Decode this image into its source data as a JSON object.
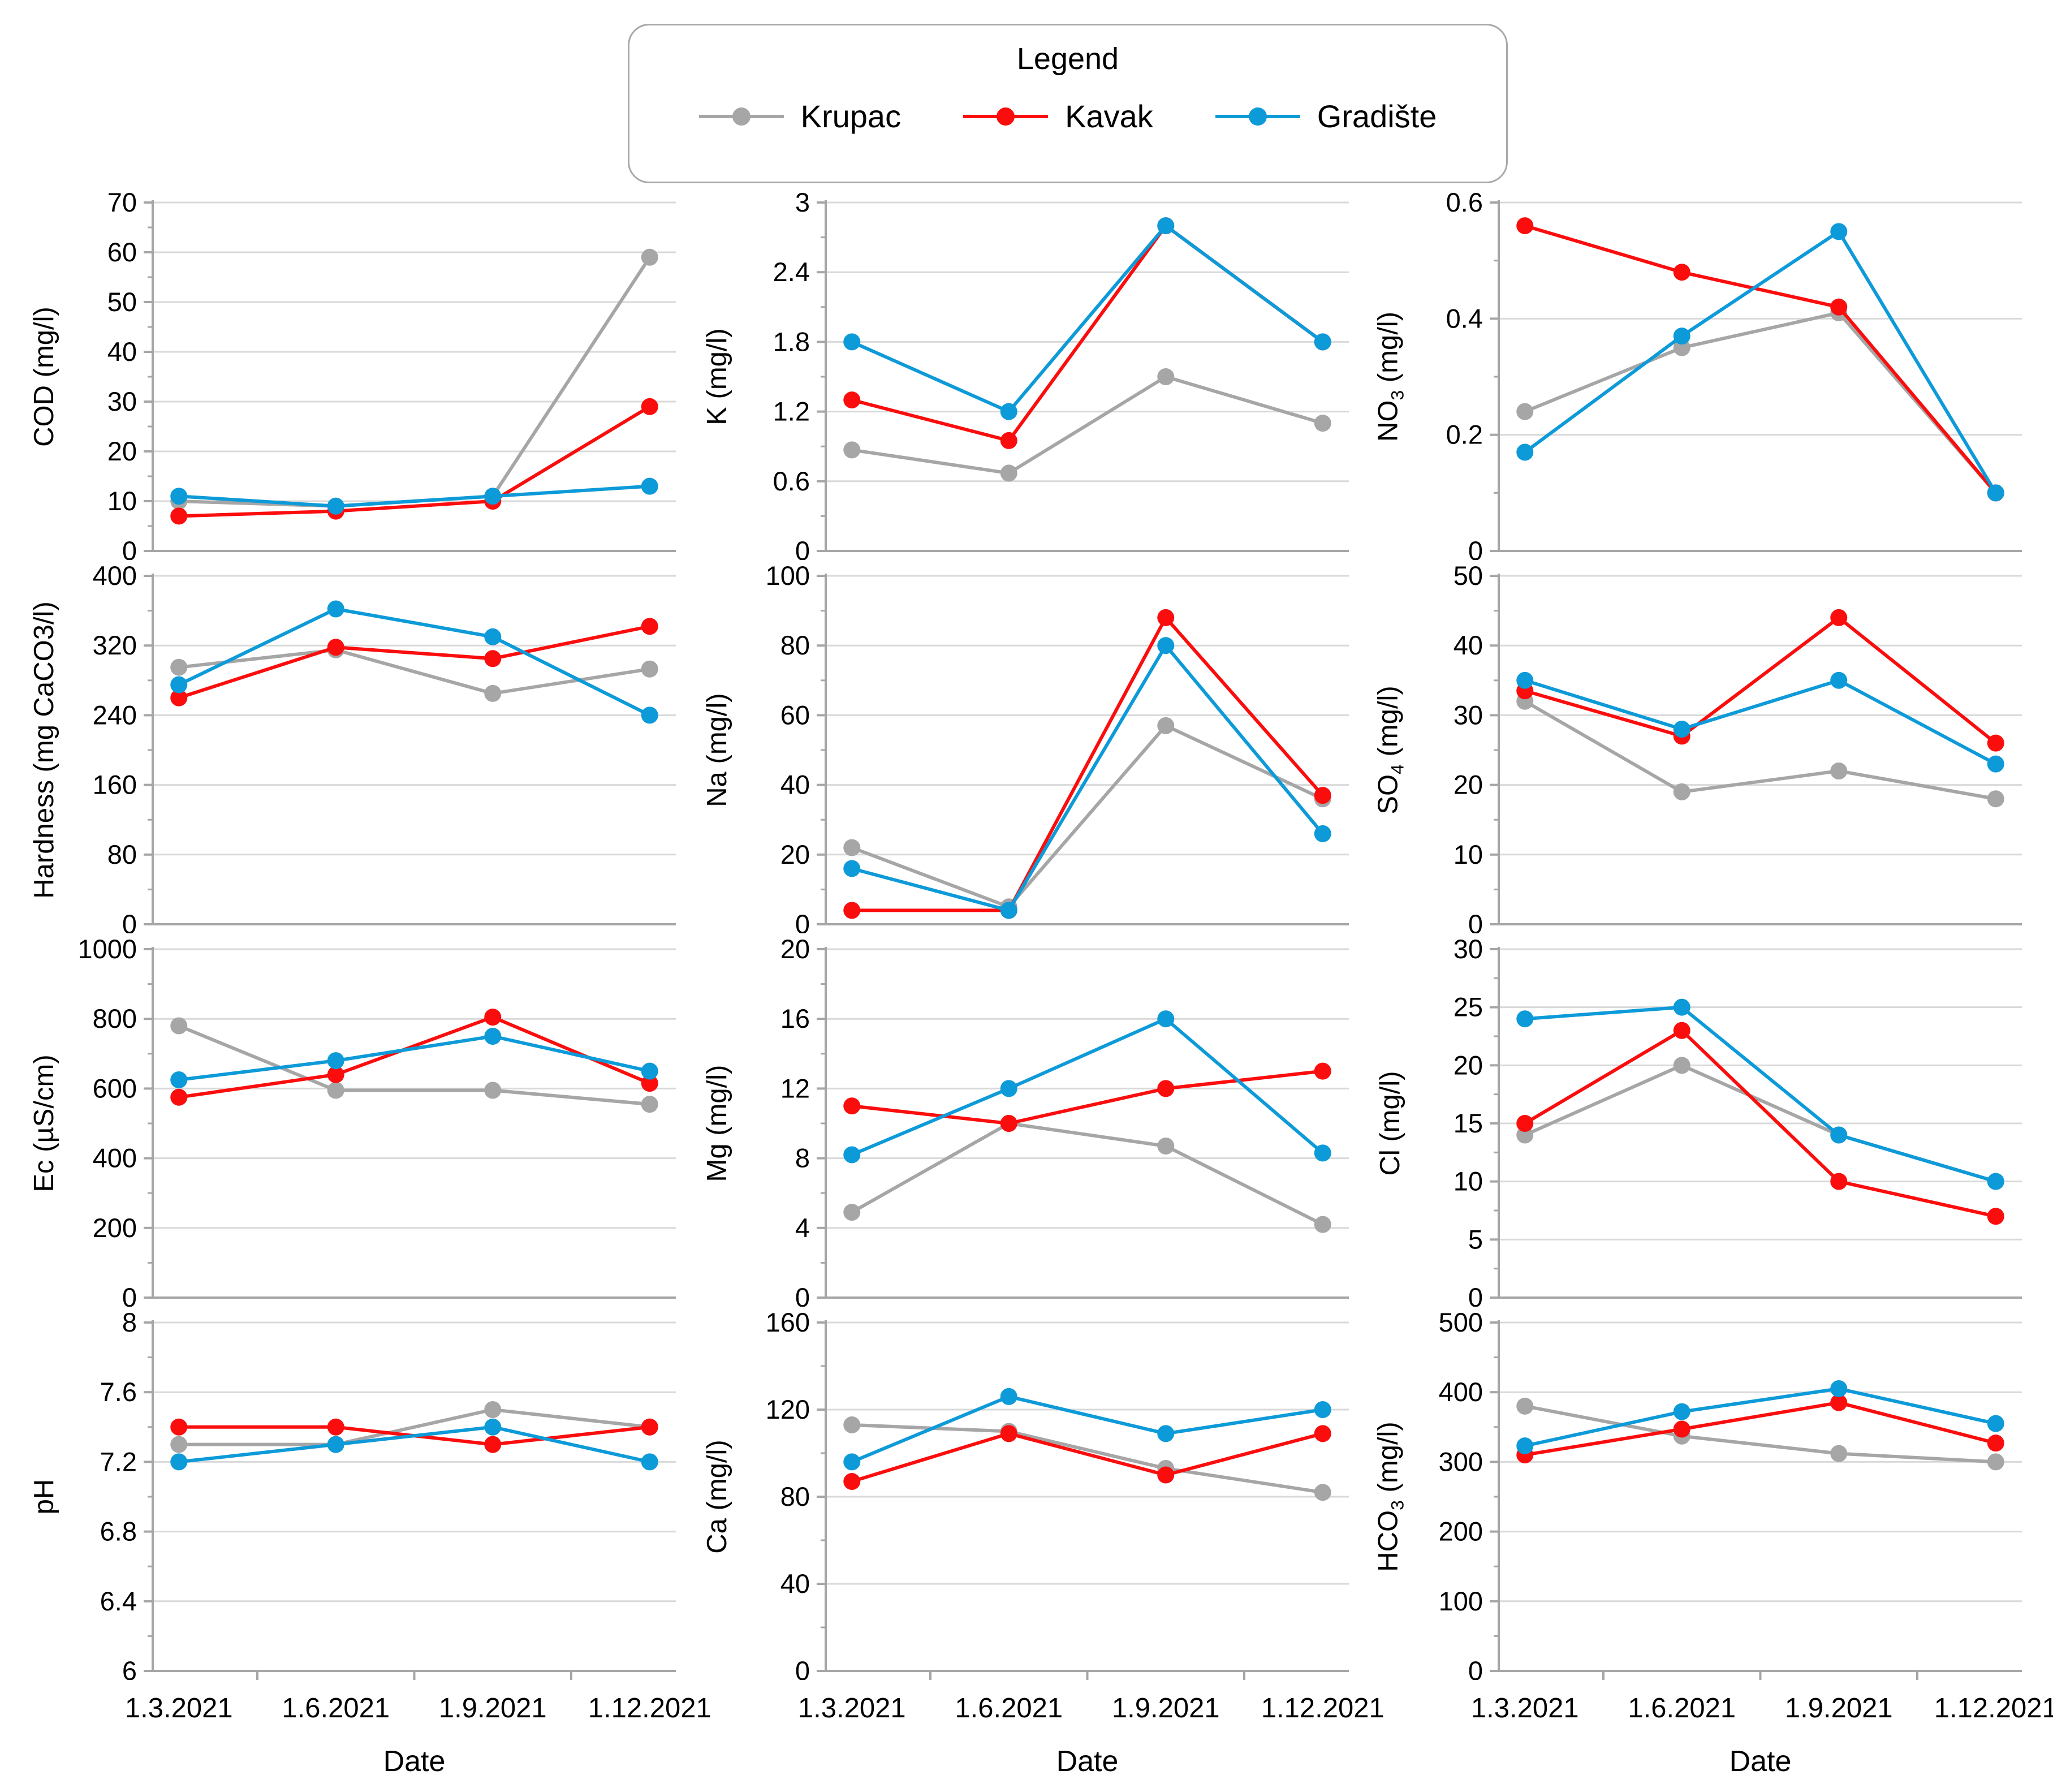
{
  "legend": {
    "title": "Legend",
    "entries": [
      {
        "label": "Krupac",
        "color": "#a6a6a6"
      },
      {
        "label": "Kavak",
        "color": "#fb0d0d"
      },
      {
        "label": "Gradište",
        "color": "#0d9ad8"
      }
    ]
  },
  "x_axis": {
    "categories": [
      "1.3.2021",
      "1.6.2021",
      "1.9.2021",
      "1.12.2021"
    ],
    "label": "Date"
  },
  "style": {
    "grid_color": "#d9d9d9",
    "axis_color": "#a6a6a6",
    "background": "#ffffff"
  },
  "chart_data": [
    {
      "id": "cod",
      "type": "line",
      "ylabel": "COD (mg/l)",
      "ylim": [
        0,
        70
      ],
      "yticks": [
        0,
        10,
        20,
        30,
        40,
        50,
        60,
        70
      ],
      "categories": [
        "1.3.2021",
        "1.6.2021",
        "1.9.2021",
        "1.12.2021"
      ],
      "grid": true,
      "series": [
        {
          "name": "Krupac",
          "values": [
            10,
            9,
            11,
            59
          ]
        },
        {
          "name": "Kavak",
          "values": [
            7,
            8,
            10,
            29
          ]
        },
        {
          "name": "Gradište",
          "values": [
            11,
            9,
            11,
            13
          ]
        }
      ]
    },
    {
      "id": "k",
      "type": "line",
      "ylabel": "K (mg/l)",
      "ylim": [
        0,
        3
      ],
      "yticks": [
        0,
        0.6,
        1.2,
        1.8,
        2.4,
        3
      ],
      "categories": [
        "1.3.2021",
        "1.6.2021",
        "1.9.2021",
        "1.12.2021"
      ],
      "grid": true,
      "series": [
        {
          "name": "Krupac",
          "values": [
            0.87,
            0.67,
            1.5,
            1.1
          ]
        },
        {
          "name": "Kavak",
          "values": [
            1.3,
            0.95,
            2.8,
            1.8
          ]
        },
        {
          "name": "Gradište",
          "values": [
            1.8,
            1.2,
            2.8,
            1.8
          ]
        }
      ]
    },
    {
      "id": "no3",
      "type": "line",
      "ylabel": "NO_3_ (mg/l)",
      "ylim": [
        0,
        0.6
      ],
      "yticks": [
        0,
        0.2,
        0.4,
        0.6
      ],
      "categories": [
        "1.3.2021",
        "1.6.2021",
        "1.9.2021",
        "1.12.2021"
      ],
      "grid": true,
      "series": [
        {
          "name": "Krupac",
          "values": [
            0.24,
            0.35,
            0.41,
            0.1
          ]
        },
        {
          "name": "Kavak",
          "values": [
            0.56,
            0.48,
            0.42,
            0.1
          ]
        },
        {
          "name": "Gradište",
          "values": [
            0.17,
            0.37,
            0.55,
            0.1
          ]
        }
      ]
    },
    {
      "id": "hardness",
      "type": "line",
      "ylabel": "Hardness (mg CaCO3/l)",
      "ylim": [
        0,
        400
      ],
      "yticks": [
        0,
        80,
        160,
        240,
        320,
        400
      ],
      "categories": [
        "1.3.2021",
        "1.6.2021",
        "1.9.2021",
        "1.12.2021"
      ],
      "grid": true,
      "series": [
        {
          "name": "Krupac",
          "values": [
            295,
            315,
            265,
            293
          ]
        },
        {
          "name": "Kavak",
          "values": [
            260,
            318,
            305,
            342
          ]
        },
        {
          "name": "Gradište",
          "values": [
            275,
            362,
            330,
            240
          ]
        }
      ]
    },
    {
      "id": "na",
      "type": "line",
      "ylabel": "Na (mg/l)",
      "ylim": [
        0,
        100
      ],
      "yticks": [
        0,
        20,
        40,
        60,
        80,
        100
      ],
      "categories": [
        "1.3.2021",
        "1.6.2021",
        "1.9.2021",
        "1.12.2021"
      ],
      "grid": true,
      "series": [
        {
          "name": "Krupac",
          "values": [
            22,
            5,
            57,
            36
          ]
        },
        {
          "name": "Kavak",
          "values": [
            4,
            4,
            88,
            37
          ]
        },
        {
          "name": "Gradište",
          "values": [
            16,
            4,
            80,
            26
          ]
        }
      ]
    },
    {
      "id": "so4",
      "type": "line",
      "ylabel": "SO_4_ (mg/l)",
      "ylim": [
        0,
        50
      ],
      "yticks": [
        0,
        10,
        20,
        30,
        40,
        50
      ],
      "categories": [
        "1.3.2021",
        "1.6.2021",
        "1.9.2021",
        "1.12.2021"
      ],
      "grid": true,
      "series": [
        {
          "name": "Krupac",
          "values": [
            32,
            19,
            22,
            18
          ]
        },
        {
          "name": "Kavak",
          "values": [
            33.5,
            27,
            44,
            26
          ]
        },
        {
          "name": "Gradište",
          "values": [
            35,
            28,
            35,
            23
          ]
        }
      ]
    },
    {
      "id": "ec",
      "type": "line",
      "ylabel": "Ec (µS/cm)",
      "ylim": [
        0,
        1000
      ],
      "yticks": [
        0,
        200,
        400,
        600,
        800,
        1000
      ],
      "categories": [
        "1.3.2021",
        "1.6.2021",
        "1.9.2021",
        "1.12.2021"
      ],
      "grid": true,
      "series": [
        {
          "name": "Krupac",
          "values": [
            780,
            595,
            595,
            555
          ]
        },
        {
          "name": "Kavak",
          "values": [
            575,
            640,
            805,
            615
          ]
        },
        {
          "name": "Gradište",
          "values": [
            625,
            680,
            750,
            650
          ]
        }
      ]
    },
    {
      "id": "mg",
      "type": "line",
      "ylabel": "Mg (mg/l)",
      "ylim": [
        0,
        20
      ],
      "yticks": [
        0,
        4,
        8,
        12,
        16,
        20
      ],
      "categories": [
        "1.3.2021",
        "1.6.2021",
        "1.9.2021",
        "1.12.2021"
      ],
      "grid": true,
      "series": [
        {
          "name": "Krupac",
          "values": [
            4.9,
            10,
            8.7,
            4.2
          ]
        },
        {
          "name": "Kavak",
          "values": [
            11,
            10,
            12,
            13
          ]
        },
        {
          "name": "Gradište",
          "values": [
            8.2,
            12,
            16,
            8.3
          ]
        }
      ]
    },
    {
      "id": "cl",
      "type": "line",
      "ylabel": "Cl (mg/l)",
      "ylim": [
        0,
        30
      ],
      "yticks": [
        0,
        5,
        10,
        15,
        20,
        25,
        30
      ],
      "categories": [
        "1.3.2021",
        "1.6.2021",
        "1.9.2021",
        "1.12.2021"
      ],
      "grid": true,
      "series": [
        {
          "name": "Krupac",
          "values": [
            14,
            20,
            14,
            10
          ]
        },
        {
          "name": "Kavak",
          "values": [
            15,
            23,
            10,
            7
          ]
        },
        {
          "name": "Gradište",
          "values": [
            24,
            25,
            14,
            10
          ]
        }
      ]
    },
    {
      "id": "ph",
      "type": "line",
      "ylabel": "pH",
      "ylim": [
        6,
        8
      ],
      "yticks": [
        6,
        6.4,
        6.8,
        7.2,
        7.6,
        8
      ],
      "categories": [
        "1.3.2021",
        "1.6.2021",
        "1.9.2021",
        "1.12.2021"
      ],
      "grid": true,
      "series": [
        {
          "name": "Krupac",
          "values": [
            7.3,
            7.3,
            7.5,
            7.4
          ]
        },
        {
          "name": "Kavak",
          "values": [
            7.4,
            7.4,
            7.3,
            7.4
          ]
        },
        {
          "name": "Gradište",
          "values": [
            7.2,
            7.3,
            7.4,
            7.2
          ]
        }
      ]
    },
    {
      "id": "ca",
      "type": "line",
      "ylabel": "Ca (mg/l)",
      "ylim": [
        0,
        160
      ],
      "yticks": [
        0,
        40,
        80,
        120,
        160
      ],
      "categories": [
        "1.3.2021",
        "1.6.2021",
        "1.9.2021",
        "1.12.2021"
      ],
      "grid": true,
      "series": [
        {
          "name": "Krupac",
          "values": [
            113,
            110,
            93,
            82
          ]
        },
        {
          "name": "Kavak",
          "values": [
            87,
            109,
            90,
            109
          ]
        },
        {
          "name": "Gradište",
          "values": [
            96,
            126,
            109,
            120
          ]
        }
      ]
    },
    {
      "id": "hco3",
      "type": "line",
      "ylabel": "HCO_3_ (mg/l)",
      "ylim": [
        0,
        500
      ],
      "yticks": [
        0,
        100,
        200,
        300,
        400,
        500
      ],
      "categories": [
        "1.3.2021",
        "1.6.2021",
        "1.9.2021",
        "1.12.2021"
      ],
      "grid": true,
      "series": [
        {
          "name": "Krupac",
          "values": [
            380,
            337,
            312,
            300
          ]
        },
        {
          "name": "Kavak",
          "values": [
            310,
            347,
            385,
            327
          ]
        },
        {
          "name": "Gradište",
          "values": [
            323,
            372,
            405,
            355
          ]
        }
      ]
    }
  ]
}
